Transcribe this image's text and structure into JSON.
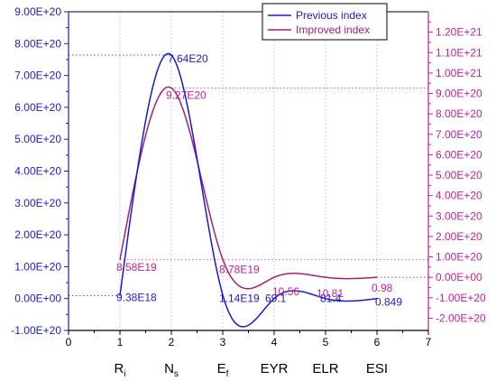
{
  "chart_data": {
    "type": "line",
    "title": "",
    "xlabel": "",
    "x_ticks": [
      "0",
      "1",
      "2",
      "3",
      "4",
      "5",
      "6",
      "7"
    ],
    "xlim": [
      0,
      7
    ],
    "categories": [
      "Ri",
      "Ns",
      "Ef",
      "EYR",
      "ELR",
      "ESI"
    ],
    "category_labels": [
      {
        "main": "R",
        "sub": "i"
      },
      {
        "main": "N",
        "sub": "s"
      },
      {
        "main": "E",
        "sub": "f"
      },
      {
        "main": "EYR",
        "sub": ""
      },
      {
        "main": "ELR",
        "sub": ""
      },
      {
        "main": "ESI",
        "sub": ""
      }
    ],
    "x": [
      1,
      2,
      3,
      4,
      5,
      6
    ],
    "left_axis": {
      "ylim": [
        -1e+20,
        9e+20
      ],
      "ticks": [
        "-1.00E+20",
        "0.00E+00",
        "1.00E+20",
        "2.00E+20",
        "3.00E+20",
        "4.00E+20",
        "5.00E+20",
        "6.00E+20",
        "7.00E+20",
        "8.00E+20",
        "9.00E+20"
      ],
      "color": "#1a1ac8"
    },
    "right_axis": {
      "ylim": [
        -2.6e+20,
        1.3e+21
      ],
      "ticks": [
        "-2.00E+20",
        "-1.00E+20",
        "0.00E+00",
        "1.00E+20",
        "2.00E+20",
        "3.00E+20",
        "4.00E+20",
        "5.00E+20",
        "6.00E+20",
        "7.00E+20",
        "8.00E+20",
        "9.00E+20",
        "1.00E+21",
        "1.10E+21",
        "1.20E+21"
      ],
      "color": "#c0209a"
    },
    "series": [
      {
        "name": "Previous index",
        "axis": "left",
        "color": "#1a1ac8",
        "values": [
          9.38e+18,
          7.64e+20,
          1.14e+19,
          69.1,
          81.4,
          0.849
        ],
        "labels": [
          "9.38E18",
          "7.64E20",
          "1.14E19",
          "69.1",
          "81.4",
          "0.849"
        ]
      },
      {
        "name": "Improved index",
        "axis": "right",
        "color": "#a0207a",
        "values": [
          8.58e+19,
          9.27e+20,
          8.78e+19,
          10.56,
          10.81,
          0.98
        ],
        "labels": [
          "8.58E19",
          "9.27E20",
          "8.78E19",
          "10.56",
          "10.81",
          "0.98"
        ]
      }
    ],
    "legend_position": "top-right",
    "grid": false
  }
}
